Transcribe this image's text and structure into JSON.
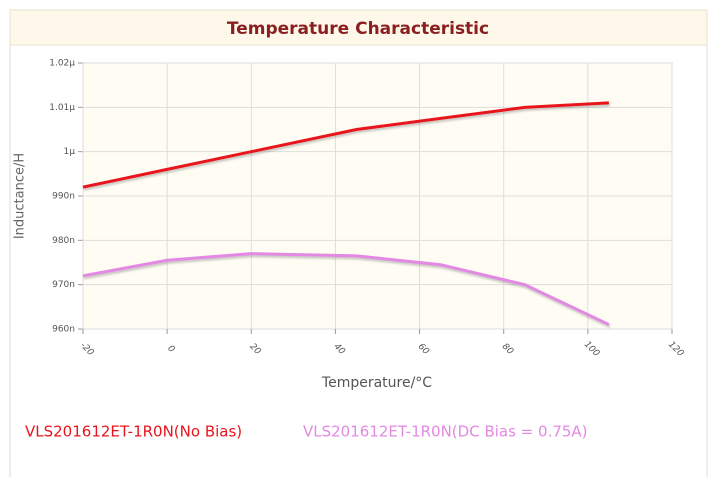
{
  "chart_data": {
    "type": "line",
    "title": "Temperature Characteristic",
    "xlabel": "Temperature/°C",
    "ylabel": "Inductance/H",
    "x": [
      -20,
      0,
      20,
      45,
      65,
      85,
      105
    ],
    "series": [
      {
        "name": "VLS201612ET-1R0N(No Bias)",
        "color": "#e8141c",
        "values": [
          9.92e-07,
          9.96e-07,
          1e-06,
          1.005e-06,
          1.0075e-06,
          1.01e-06,
          1.011e-06
        ]
      },
      {
        "name": "VLS201612ET-1R0N(DC Bias = 0.75A)",
        "color": "#e389e3",
        "values": [
          9.72e-07,
          9.755e-07,
          9.77e-07,
          9.765e-07,
          9.745e-07,
          9.7e-07,
          9.61e-07
        ]
      }
    ],
    "xlim": [
      -20,
      120
    ],
    "xticks": [
      -20,
      0,
      20,
      40,
      60,
      80,
      100,
      120
    ],
    "ylim": [
      9.6e-07,
      1.02e-06
    ],
    "yticks": [
      {
        "value": 9.6e-07,
        "label": "960n"
      },
      {
        "value": 9.7e-07,
        "label": "970n"
      },
      {
        "value": 9.8e-07,
        "label": "980n"
      },
      {
        "value": 9.9e-07,
        "label": "990n"
      },
      {
        "value": 1e-06,
        "label": "1µ"
      },
      {
        "value": 1.01e-06,
        "label": "1.01µ"
      },
      {
        "value": 1.02e-06,
        "label": "1.02µ"
      }
    ],
    "grid": true
  }
}
